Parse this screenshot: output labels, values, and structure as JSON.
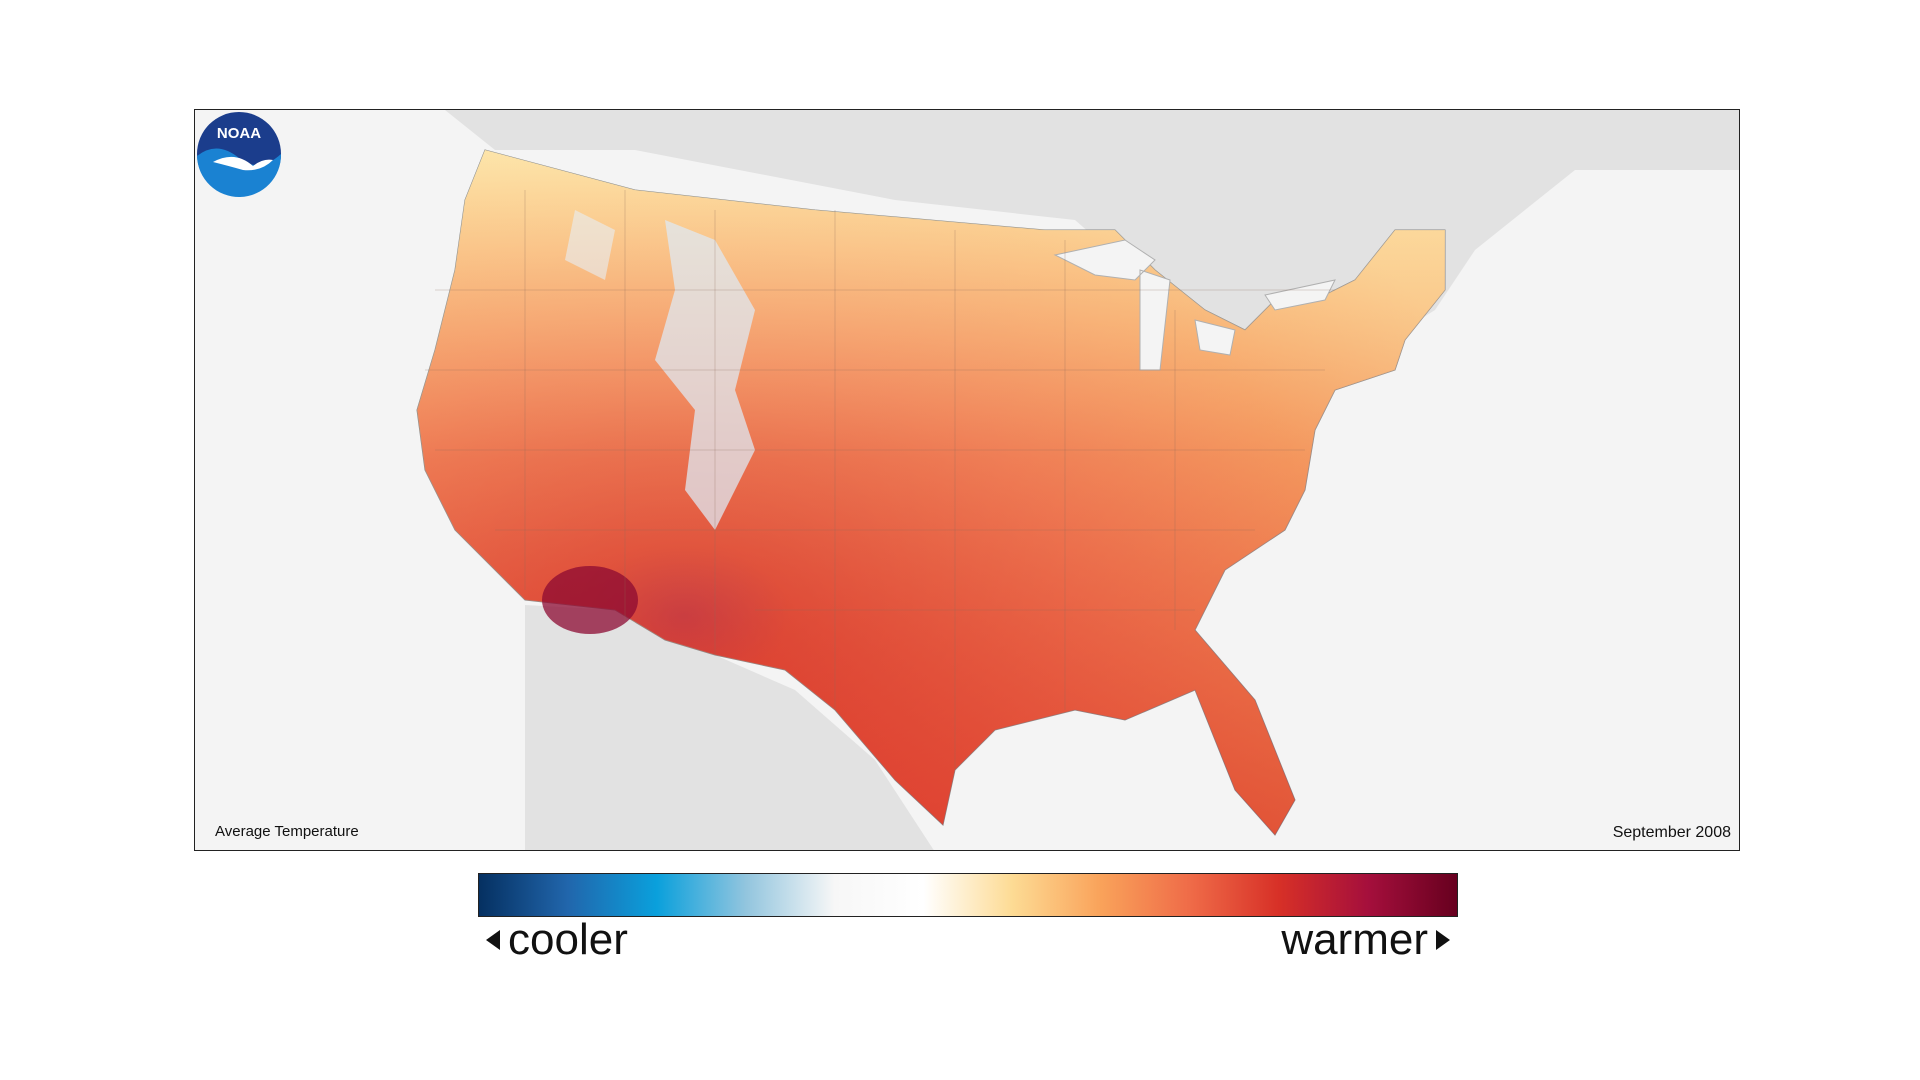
{
  "map": {
    "layer_label": "Average Temperature",
    "date_label": "September 2008",
    "logo_text": "NOAA",
    "colors": {
      "land_background": "#e2e2e2",
      "ocean": "#f4f4f4",
      "border": "#222222"
    }
  },
  "legend": {
    "cooler_label": "cooler",
    "warmer_label": "warmer",
    "gradient_colors": [
      "#053061",
      "#2166ac",
      "#0aa0dc",
      "#92c5de",
      "#f7f7f7",
      "#ffffff",
      "#fddb94",
      "#f9a25a",
      "#ef6b48",
      "#d73027",
      "#a50f3c",
      "#67001f"
    ]
  }
}
